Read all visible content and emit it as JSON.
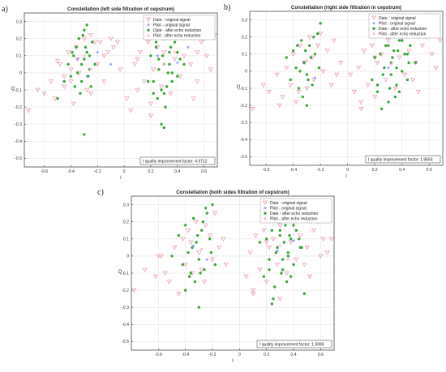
{
  "figure": {
    "panel_labels": [
      "a)",
      "b)",
      "c)"
    ]
  },
  "colors": {
    "date_original": "#e8a0b8",
    "pilot_original": "#9aa0ff",
    "date_after": "#3aa83a",
    "pilot_after": "#ffb8d0",
    "grid": "#e6e6e6",
    "axis": "#333333"
  },
  "chart_data": [
    {
      "type": "scatter",
      "title": "Constellation (left side filtration of cepstrum)",
      "xlabel": "I",
      "ylabel": "Q",
      "xlim": [
        -0.75,
        0.7
      ],
      "ylim": [
        -0.55,
        0.35
      ],
      "xticks": [
        -0.6,
        -0.4,
        -0.2,
        0,
        0.2,
        0.4,
        0.6
      ],
      "xtick_labels": [
        "-0.6",
        "-0.4",
        "-0.2",
        "0",
        "0.2",
        "0.4",
        "0.6"
      ],
      "yticks": [
        0.3,
        0.2,
        0.1,
        0,
        -0.1,
        -0.2,
        -0.3,
        -0.4,
        -0.5
      ],
      "ytick_labels": [
        "0.3",
        "0.2",
        "0.1",
        "0",
        "-0.1",
        "-0.2",
        "-0.3",
        "-0.4",
        "-0.5"
      ],
      "grid": true,
      "legend_position": "top-right",
      "annotation": "I quality improvement factor: 4.9712",
      "series": [
        {
          "name": "Date - original signal",
          "marker": "triangle-down",
          "x": [
            -0.72,
            -0.65,
            -0.6,
            -0.55,
            -0.52,
            -0.48,
            -0.45,
            -0.42,
            -0.4,
            -0.38,
            -0.36,
            -0.34,
            -0.3,
            -0.28,
            -0.25,
            -0.22,
            -0.2,
            -0.18,
            -0.15,
            -0.12,
            -0.1,
            -0.08,
            -0.05,
            -0.03,
            -0.45,
            -0.35,
            -0.25,
            -0.15,
            -0.5,
            -0.4,
            0.02,
            0.05,
            0.08,
            0.1,
            0.12,
            0.15,
            0.18,
            0.2,
            0.22,
            0.25,
            0.28,
            0.3,
            0.35,
            0.38,
            0.4,
            0.42,
            0.45,
            0.5,
            0.52,
            0.55,
            0.58,
            0.6,
            0.62,
            0.65,
            0.68,
            0.1,
            0.2,
            0.3,
            0.45,
            0.55
          ],
          "y": [
            -0.22,
            -0.1,
            -0.12,
            -0.05,
            -0.15,
            0.05,
            -0.08,
            0.12,
            0.02,
            -0.18,
            0.15,
            0.0,
            0.2,
            -0.1,
            0.22,
            0.18,
            0.05,
            0.18,
            -0.05,
            0.12,
            0.2,
            0.15,
            0.18,
            0.02,
            -0.02,
            0.08,
            -0.12,
            0.1,
            0.07,
            -0.05,
            -0.15,
            -0.22,
            0.05,
            -0.1,
            0.12,
            -0.05,
            0.18,
            -0.18,
            0.02,
            0.15,
            -0.08,
            0.2,
            -0.12,
            0.08,
            0.22,
            -0.02,
            0.1,
            0.05,
            -0.15,
            0.12,
            0.18,
            0.2,
            0.1,
            0.02,
            0.22,
            0.08,
            -0.25,
            0.12,
            0.2,
            -0.05
          ]
        },
        {
          "name": "Pilot - original signal",
          "marker": "star",
          "x": [
            -0.35,
            -0.28,
            -0.2,
            -0.1,
            0.25,
            0.32,
            0.4,
            0.48
          ],
          "y": [
            0.08,
            -0.02,
            0.12,
            0.05,
            0.1,
            -0.08,
            0.06,
            0.15
          ]
        },
        {
          "name": "Date - after echo reduction",
          "marker": "circle",
          "x": [
            -0.42,
            -0.4,
            -0.38,
            -0.36,
            -0.34,
            -0.32,
            -0.3,
            -0.3,
            -0.28,
            -0.26,
            -0.25,
            -0.24,
            -0.22,
            -0.35,
            -0.33,
            -0.31,
            -0.29,
            -0.27,
            -0.37,
            -0.39,
            -0.3,
            -0.28,
            -0.32,
            -0.26,
            -0.45,
            -0.5,
            0.2,
            0.22,
            0.24,
            0.26,
            0.28,
            0.3,
            0.3,
            0.32,
            0.34,
            0.36,
            0.38,
            0.4,
            0.42,
            0.25,
            0.27,
            0.29,
            0.31,
            0.33,
            0.35,
            0.28,
            0.3,
            0.32,
            0.34,
            0.36,
            0.24,
            0.26,
            0.38,
            0.4,
            0.3,
            0.33,
            0.45,
            0.5,
            0.18,
            0.22
          ],
          "y": [
            0.05,
            -0.02,
            0.1,
            0.15,
            0.2,
            -0.05,
            0.25,
            0.08,
            0.12,
            0.02,
            -0.08,
            0.18,
            0.05,
            0.0,
            -0.12,
            0.22,
            0.15,
            -0.02,
            -0.08,
            0.12,
            -0.36,
            0.28,
            0.05,
            0.1,
            -0.05,
            -0.15,
            0.1,
            -0.05,
            0.15,
            0.02,
            -0.1,
            0.2,
            0.05,
            -0.08,
            0.12,
            0.0,
            0.18,
            -0.02,
            0.08,
            -0.15,
            0.25,
            0.1,
            -0.2,
            0.0,
            0.15,
            -0.3,
            -0.12,
            0.22,
            0.05,
            -0.05,
            0.18,
            0.08,
            0.25,
            0.12,
            -0.32,
            0.28,
            0.05,
            0.3,
            -0.05,
            -0.12
          ]
        },
        {
          "name": "Pilot - after echo reduction",
          "marker": "star",
          "x": [
            -0.3,
            -0.25,
            0.3,
            0.38
          ],
          "y": [
            0.1,
            0.02,
            0.05,
            0.12
          ]
        }
      ]
    },
    {
      "type": "scatter",
      "title": "Constellation (right side filtration in cepstrum)",
      "xlabel": "I",
      "ylabel": "Q",
      "xlim": [
        -0.72,
        0.7
      ],
      "ylim": [
        -0.55,
        0.35
      ],
      "xticks": [
        -0.6,
        -0.4,
        -0.2,
        0,
        0.2,
        0.4,
        0.6
      ],
      "xtick_labels": [
        "-0.6",
        "-0.4",
        "-0.2",
        "0",
        "0.2",
        "0.4",
        "0.6"
      ],
      "yticks": [
        0.3,
        0.2,
        0.1,
        0,
        -0.1,
        -0.2,
        -0.3,
        -0.4,
        -0.5
      ],
      "ytick_labels": [
        "0.3",
        "0.2",
        "0.1",
        "0",
        "-0.1",
        "-0.2",
        "-0.3",
        "-0.4",
        "-0.5"
      ],
      "grid": true,
      "legend_position": "top-right",
      "annotation": "I quality improvement factor: 1.9693",
      "series": [
        {
          "name": "Date - original signal",
          "marker": "triangle-down",
          "x": [
            -0.7,
            -0.62,
            -0.58,
            -0.52,
            -0.48,
            -0.45,
            -0.42,
            -0.4,
            -0.38,
            -0.35,
            -0.32,
            -0.3,
            -0.28,
            -0.25,
            -0.22,
            -0.2,
            -0.18,
            -0.15,
            -0.12,
            -0.1,
            -0.08,
            -0.05,
            -0.5,
            -0.36,
            -0.26,
            0.02,
            0.05,
            0.08,
            0.1,
            0.12,
            0.15,
            0.18,
            0.2,
            0.22,
            0.25,
            0.28,
            0.3,
            0.35,
            0.38,
            0.4,
            0.42,
            0.45,
            0.5,
            0.52,
            0.55,
            0.58,
            0.6,
            0.62,
            0.65,
            0.68,
            0.1,
            0.2,
            0.35,
            0.48
          ],
          "y": [
            -0.22,
            -0.08,
            -0.12,
            -0.02,
            -0.15,
            0.02,
            -0.08,
            0.1,
            -0.18,
            0.15,
            0.05,
            -0.1,
            0.2,
            -0.05,
            0.15,
            0.22,
            0.0,
            0.12,
            -0.08,
            0.18,
            -0.02,
            0.05,
            -0.2,
            -0.12,
            0.08,
            -0.02,
            -0.12,
            0.02,
            -0.18,
            0.12,
            -0.08,
            0.15,
            -0.15,
            0.05,
            0.1,
            -0.05,
            0.18,
            -0.1,
            0.08,
            0.2,
            -0.02,
            0.12,
            0.05,
            -0.12,
            0.15,
            0.2,
            0.22,
            0.1,
            0.02,
            0.18,
            -0.22,
            0.08,
            0.22,
            -0.05
          ]
        },
        {
          "name": "Pilot - original signal",
          "marker": "star",
          "x": [
            -0.32,
            -0.24,
            0.3,
            0.42
          ],
          "y": [
            0.05,
            -0.04,
            0.02,
            0.1
          ]
        },
        {
          "name": "Date - after echo reduction",
          "marker": "circle",
          "x": [
            -0.45,
            -0.42,
            -0.4,
            -0.38,
            -0.36,
            -0.34,
            -0.32,
            -0.3,
            -0.28,
            -0.26,
            -0.24,
            -0.22,
            -0.2,
            -0.35,
            -0.33,
            -0.31,
            -0.29,
            -0.27,
            -0.37,
            -0.3,
            -0.25,
            -0.21,
            0.18,
            0.2,
            0.22,
            0.24,
            0.26,
            0.28,
            0.3,
            0.32,
            0.34,
            0.36,
            0.38,
            0.4,
            0.42,
            0.44,
            0.46,
            0.48,
            0.5,
            0.25,
            0.27,
            0.29,
            0.31,
            0.33,
            0.35,
            0.37,
            0.28,
            0.32,
            0.36,
            0.4,
            0.44,
            0.22,
            0.3,
            0.38,
            0.45,
            0.52
          ],
          "y": [
            0.08,
            -0.05,
            0.12,
            0.02,
            -0.1,
            0.18,
            0.05,
            -0.02,
            0.15,
            -0.08,
            0.1,
            0.22,
            0.28,
            0.0,
            -0.15,
            0.12,
            -0.05,
            0.08,
            0.15,
            -0.2,
            0.2,
            0.02,
            -0.05,
            0.08,
            -0.12,
            0.1,
            -0.02,
            0.15,
            -0.18,
            0.05,
            0.12,
            -0.08,
            0.18,
            0.0,
            0.1,
            -0.05,
            0.15,
            0.22,
            0.05,
            -0.22,
            0.02,
            0.2,
            -0.1,
            0.08,
            -0.15,
            0.12,
            0.25,
            -0.02,
            0.02,
            0.18,
            0.1,
            -0.08,
            0.15,
            -0.12,
            0.05,
            0.2
          ]
        },
        {
          "name": "Pilot - after echo reduction",
          "marker": "star",
          "x": [
            -0.3,
            0.32
          ],
          "y": [
            0.06,
            0.04
          ]
        }
      ]
    },
    {
      "type": "scatter",
      "title": "Constellation (both sides filtration of cepstrum)",
      "xlabel": "I",
      "ylabel": "Q",
      "xlim": [
        -0.8,
        0.7
      ],
      "ylim": [
        -0.55,
        0.35
      ],
      "xticks": [
        -0.6,
        -0.4,
        -0.2,
        0,
        0.2,
        0.4,
        0.6
      ],
      "xtick_labels": [
        "-0.6",
        "-0.4",
        "-0.2",
        "0",
        "0.2",
        "0.4",
        "0.6"
      ],
      "yticks": [
        0.3,
        0.2,
        0.1,
        0,
        -0.1,
        -0.2,
        -0.3,
        -0.4,
        -0.5
      ],
      "ytick_labels": [
        "0.3",
        "0.2",
        "0.1",
        "0",
        "-0.1",
        "-0.2",
        "-0.3",
        "-0.4",
        "-0.5"
      ],
      "grid": true,
      "legend_position": "top-right",
      "annotation": "I quality improvement factor: 1.5086",
      "series": [
        {
          "name": "Date - original signal",
          "marker": "triangle-down",
          "x": [
            -0.78,
            -0.7,
            -0.62,
            -0.58,
            -0.52,
            -0.48,
            -0.45,
            -0.42,
            -0.4,
            -0.38,
            -0.35,
            -0.32,
            -0.3,
            -0.28,
            -0.25,
            -0.22,
            -0.2,
            -0.18,
            -0.15,
            -0.12,
            -0.1,
            -0.55,
            -0.36,
            -0.26,
            -0.6,
            0.05,
            0.08,
            0.1,
            0.12,
            0.15,
            0.18,
            0.2,
            0.22,
            0.25,
            0.28,
            0.3,
            0.35,
            0.38,
            0.4,
            0.42,
            0.45,
            0.5,
            0.52,
            0.55,
            0.58,
            0.6,
            0.62,
            0.65,
            0.68,
            0.1,
            0.2,
            0.35,
            0.48,
            0.3
          ],
          "y": [
            -0.2,
            -0.08,
            -0.12,
            0.0,
            -0.15,
            0.05,
            -0.22,
            0.1,
            -0.05,
            0.15,
            -0.1,
            0.2,
            0.02,
            -0.08,
            0.18,
            0.12,
            -0.02,
            0.25,
            0.05,
            0.1,
            -0.05,
            -0.1,
            0.08,
            -0.15,
            0.0,
            -0.12,
            0.02,
            -0.2,
            0.12,
            -0.08,
            0.15,
            -0.15,
            0.05,
            0.1,
            -0.05,
            0.18,
            -0.1,
            0.08,
            0.2,
            -0.02,
            0.12,
            0.05,
            -0.12,
            0.15,
            0.2,
            0.0,
            0.1,
            0.02,
            0.1,
            -0.22,
            0.08,
            0.22,
            -0.05,
            -0.25
          ]
        },
        {
          "name": "Pilot - original signal",
          "marker": "star",
          "x": [
            -0.34,
            -0.24,
            0.28,
            0.4
          ],
          "y": [
            0.06,
            -0.02,
            0.03,
            0.09
          ]
        },
        {
          "name": "Date - after echo reduction",
          "marker": "circle",
          "x": [
            -0.5,
            -0.45,
            -0.42,
            -0.4,
            -0.38,
            -0.36,
            -0.34,
            -0.32,
            -0.3,
            -0.28,
            -0.26,
            -0.24,
            -0.22,
            -0.2,
            -0.18,
            -0.35,
            -0.33,
            -0.31,
            -0.29,
            -0.27,
            -0.37,
            -0.3,
            -0.25,
            -0.21,
            -0.4,
            0.15,
            0.18,
            0.2,
            0.22,
            0.24,
            0.26,
            0.28,
            0.3,
            0.32,
            0.34,
            0.36,
            0.38,
            0.4,
            0.42,
            0.44,
            0.46,
            0.48,
            0.5,
            0.25,
            0.27,
            0.29,
            0.31,
            0.33,
            0.35,
            0.37,
            0.28,
            0.32,
            0.36,
            0.4,
            0.44,
            0.22,
            0.3,
            0.38,
            0.45,
            0.52,
            0.24
          ],
          "y": [
            0.0,
            0.12,
            -0.05,
            0.18,
            0.02,
            -0.1,
            0.22,
            0.08,
            -0.02,
            0.15,
            -0.08,
            0.25,
            0.1,
            0.3,
            -0.05,
            0.05,
            -0.15,
            0.12,
            -0.1,
            0.2,
            -0.12,
            -0.3,
            0.28,
            0.02,
            -0.2,
            0.08,
            -0.12,
            0.1,
            -0.02,
            0.15,
            -0.18,
            0.05,
            0.12,
            -0.08,
            0.18,
            0.0,
            0.1,
            -0.05,
            0.15,
            0.22,
            0.05,
            -0.22,
            0.32,
            -0.25,
            0.02,
            0.2,
            -0.1,
            0.08,
            -0.15,
            0.12,
            0.25,
            -0.02,
            0.02,
            0.18,
            0.1,
            -0.08,
            0.15,
            -0.12,
            0.05,
            0.2,
            -0.28
          ]
        },
        {
          "name": "Pilot - after echo reduction",
          "marker": "star",
          "x": [
            -0.28,
            0.3,
            0.36
          ],
          "y": [
            0.04,
            0.06,
            -0.02
          ]
        }
      ]
    }
  ]
}
